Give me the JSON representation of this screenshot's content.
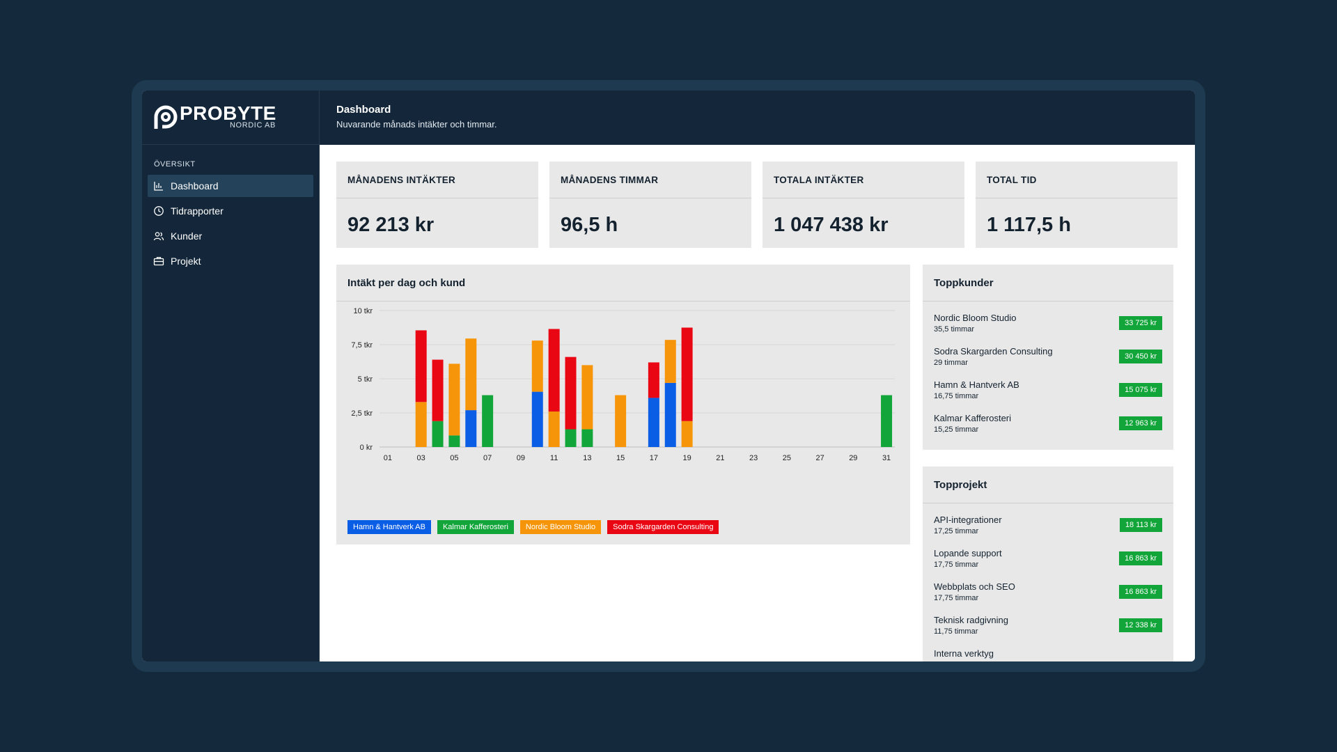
{
  "brand": {
    "name": "PROBYTE",
    "sub": "NORDIC AB"
  },
  "sidebar": {
    "section": "ÖVERSIKT",
    "items": [
      {
        "label": "Dashboard",
        "icon": "bar-chart-icon",
        "active": true
      },
      {
        "label": "Tidrapporter",
        "icon": "clock-icon",
        "active": false
      },
      {
        "label": "Kunder",
        "icon": "users-icon",
        "active": false
      },
      {
        "label": "Projekt",
        "icon": "briefcase-icon",
        "active": false
      }
    ]
  },
  "header": {
    "title": "Dashboard",
    "subtitle": "Nuvarande månads intäkter och timmar."
  },
  "stats": [
    {
      "label": "MÅNADENS INTÄKTER",
      "value": "92 213 kr"
    },
    {
      "label": "MÅNADENS TIMMAR",
      "value": "96,5 h"
    },
    {
      "label": "TOTALA INTÄKTER",
      "value": "1 047 438 kr"
    },
    {
      "label": "TOTAL TID",
      "value": "1 117,5 h"
    }
  ],
  "chart": {
    "title": "Intäkt per dag och kund"
  },
  "chart_data": {
    "type": "bar",
    "stacked": true,
    "title": "Intäkt per dag och kund",
    "categories": [
      "01",
      "02",
      "03",
      "04",
      "05",
      "06",
      "07",
      "08",
      "09",
      "10",
      "11",
      "12",
      "13",
      "14",
      "15",
      "16",
      "17",
      "18",
      "19",
      "20",
      "21",
      "22",
      "23",
      "24",
      "25",
      "26",
      "27",
      "28",
      "29",
      "30",
      "31"
    ],
    "x_tick_labels": [
      "01",
      "03",
      "05",
      "07",
      "09",
      "11",
      "13",
      "15",
      "17",
      "19",
      "21",
      "23",
      "25",
      "27",
      "29",
      "31"
    ],
    "y_ticks": [
      {
        "value": 0,
        "label": "0 kr"
      },
      {
        "value": 2500,
        "label": "2,5 tkr"
      },
      {
        "value": 5000,
        "label": "5 tkr"
      },
      {
        "value": 7500,
        "label": "7,5 tkr"
      },
      {
        "value": 10000,
        "label": "10 tkr"
      }
    ],
    "ylim": [
      0,
      10000
    ],
    "grid": true,
    "legend_position": "bottom-left",
    "series": [
      {
        "name": "Hamn & Hantverk AB",
        "color": "#0a5ee6",
        "values": [
          0,
          0,
          0,
          0,
          0,
          2700,
          0,
          0,
          0,
          4050,
          0,
          0,
          0,
          0,
          0,
          0,
          3600,
          4700,
          0,
          0,
          0,
          0,
          0,
          0,
          0,
          0,
          0,
          0,
          0,
          0,
          0
        ]
      },
      {
        "name": "Kalmar Kafferosteri",
        "color": "#12a53a",
        "values": [
          0,
          0,
          0,
          1900,
          850,
          0,
          3800,
          0,
          0,
          0,
          0,
          1300,
          1300,
          0,
          0,
          0,
          0,
          0,
          0,
          0,
          0,
          0,
          0,
          0,
          0,
          0,
          0,
          0,
          0,
          0,
          3800
        ]
      },
      {
        "name": "Nordic Bloom Studio",
        "color": "#f7950a",
        "values": [
          0,
          0,
          3300,
          0,
          5250,
          5250,
          0,
          0,
          0,
          3750,
          2600,
          0,
          4700,
          0,
          3800,
          0,
          0,
          3150,
          1900,
          0,
          0,
          0,
          0,
          0,
          0,
          0,
          0,
          0,
          0,
          0,
          0
        ]
      },
      {
        "name": "Sodra Skargarden Consulting",
        "color": "#ea0714",
        "values": [
          0,
          0,
          5250,
          4500,
          0,
          0,
          0,
          0,
          0,
          0,
          6050,
          5300,
          0,
          0,
          0,
          0,
          2600,
          0,
          6850,
          0,
          0,
          0,
          0,
          0,
          0,
          0,
          0,
          0,
          0,
          0,
          0
        ]
      }
    ]
  },
  "top_customers": {
    "title": "Toppkunder",
    "items": [
      {
        "name": "Nordic Bloom Studio",
        "hours": "35,5 timmar",
        "amount": "33 725 kr"
      },
      {
        "name": "Sodra Skargarden Consulting",
        "hours": "29 timmar",
        "amount": "30 450 kr"
      },
      {
        "name": "Hamn & Hantverk AB",
        "hours": "16,75 timmar",
        "amount": "15 075 kr"
      },
      {
        "name": "Kalmar Kafferosteri",
        "hours": "15,25 timmar",
        "amount": "12 963 kr"
      }
    ]
  },
  "top_projects": {
    "title": "Topprojekt",
    "items": [
      {
        "name": "API-integrationer",
        "hours": "17,25 timmar",
        "amount": "18 113 kr"
      },
      {
        "name": "Lopande support",
        "hours": "17,75 timmar",
        "amount": "16 863 kr"
      },
      {
        "name": "Webbplats och SEO",
        "hours": "17,75 timmar",
        "amount": "16 863 kr"
      },
      {
        "name": "Teknisk radgivning",
        "hours": "11,75 timmar",
        "amount": "12 338 kr"
      },
      {
        "name": "Interna verktyg",
        "hours": "",
        "amount": ""
      }
    ]
  }
}
